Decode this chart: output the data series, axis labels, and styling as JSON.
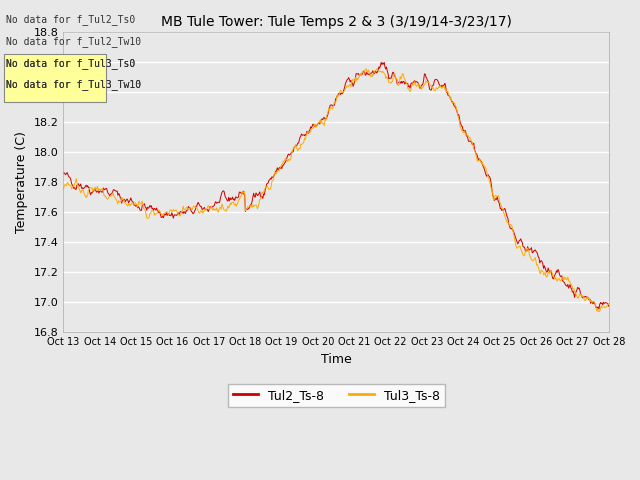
{
  "title": "MB Tule Tower: Tule Temps 2 & 3 (3/19/14-3/23/17)",
  "xlabel": "Time",
  "ylabel": "Temperature (C)",
  "ylim": [
    16.8,
    18.8
  ],
  "yticks": [
    16.8,
    17.0,
    17.2,
    17.4,
    17.6,
    17.8,
    18.0,
    18.2,
    18.4,
    18.6,
    18.8
  ],
  "xtick_labels": [
    "Oct 13",
    "Oct 14",
    "Oct 15",
    "Oct 16",
    "Oct 17",
    "Oct 18",
    "Oct 19",
    "Oct 20",
    "Oct 21",
    "Oct 22",
    "Oct 23",
    "Oct 24",
    "Oct 25",
    "Oct 26",
    "Oct 27",
    "Oct 28"
  ],
  "color_tul2": "#cc0000",
  "color_tul3": "#ffaa00",
  "legend_labels": [
    "Tul2_Ts-8",
    "Tul3_Ts-8"
  ],
  "no_data_texts": [
    "No data for f_Tul2_Ts0",
    "No data for f_Tul2_Tw10",
    "No data for f_Tul3_Ts0",
    "No data for f_Tul3_Tw10"
  ],
  "bg_color": "#e8e8e8",
  "plot_bg_color": "#e8e8e8",
  "grid_color": "#ffffff",
  "title_fontsize": 10,
  "axis_fontsize": 9,
  "tick_fontsize": 8,
  "legend_fontsize": 9
}
